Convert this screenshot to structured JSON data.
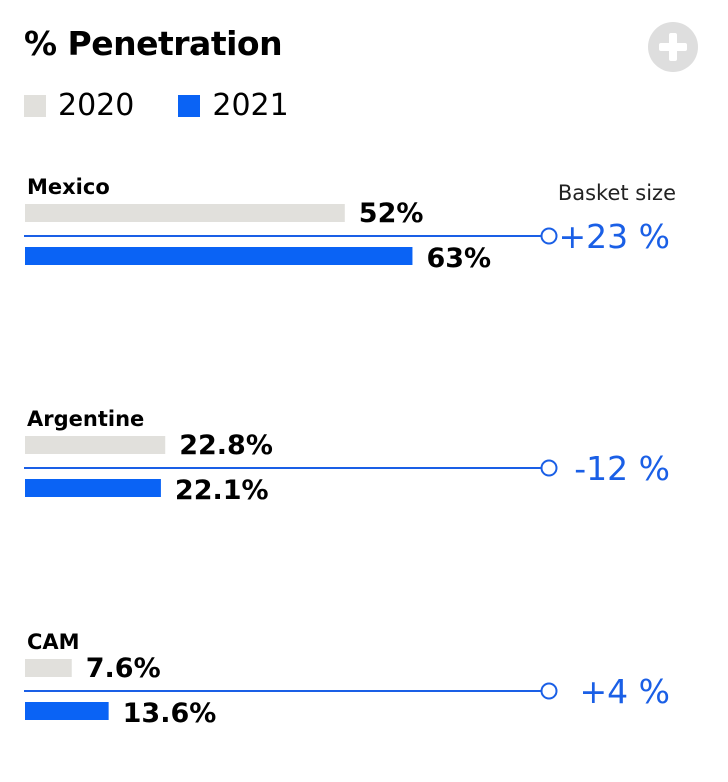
{
  "header": {
    "title": "% Penetration",
    "plus_icon": "plus-circle-icon"
  },
  "colors": {
    "y2020": "#e1e0dc",
    "y2021": "#0a63f5",
    "line": "#1a5fe6"
  },
  "chart_data": {
    "type": "bar",
    "orientation": "horizontal",
    "title": "% Penetration",
    "legend": [
      "2020",
      "2021"
    ],
    "legend_position": "top-left",
    "xlim": [
      0,
      100
    ],
    "unit": "%",
    "annotation_header": "Basket size",
    "categories": [
      "Mexico",
      "Argentine",
      "CAM"
    ],
    "series": [
      {
        "name": "2020",
        "values": [
          52,
          22.8,
          7.6
        ],
        "labels": [
          "52%",
          "22.8%",
          "7.6%"
        ]
      },
      {
        "name": "2021",
        "values": [
          63,
          22.1,
          13.6
        ],
        "labels": [
          "63%",
          "22.1%",
          "13.6%"
        ]
      }
    ],
    "basket_size_change": [
      "+23 %",
      "-12 %",
      "+4 %"
    ]
  }
}
